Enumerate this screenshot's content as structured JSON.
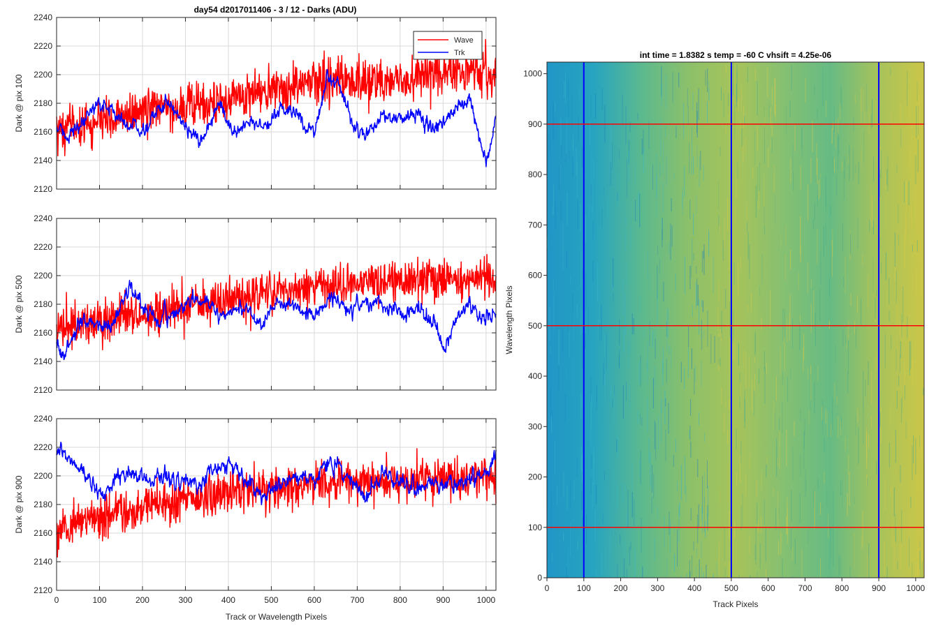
{
  "figure": {
    "title": "day54 d2017011406 - 3 / 12 - Darks (ADU)",
    "colors": {
      "wave": "#ff0000",
      "trk": "#0000ff",
      "grid": "#d9d9d9",
      "axis": "#262626"
    }
  },
  "chart_data": [
    {
      "type": "line",
      "ylabel": "Dark @ pix 100",
      "xlabel": "",
      "xlim": [
        0,
        1023
      ],
      "ylim": [
        2120,
        2240
      ],
      "xticks": [
        "0",
        "100",
        "200",
        "300",
        "400",
        "500",
        "600",
        "700",
        "800",
        "900",
        "1000"
      ],
      "yticks": [
        "2120",
        "2140",
        "2160",
        "2180",
        "2200",
        "2220",
        "2240"
      ],
      "grid": true,
      "legend": {
        "placement": "top-right",
        "entries": [
          "Wave",
          "Trk"
        ]
      },
      "series": [
        {
          "name": "Wave",
          "color": "#ff0000",
          "x": [
            0,
            50,
            100,
            150,
            200,
            250,
            300,
            350,
            400,
            450,
            500,
            550,
            600,
            650,
            700,
            750,
            800,
            850,
            900,
            950,
            1000,
            1023
          ],
          "values": [
            2163,
            2164,
            2168,
            2170,
            2174,
            2176,
            2177,
            2179,
            2183,
            2186,
            2188,
            2191,
            2195,
            2197,
            2196,
            2197,
            2195,
            2199,
            2198,
            2201,
            2202,
            2195
          ],
          "noise": 11
        },
        {
          "name": "Trk",
          "color": "#0000ff",
          "x": [
            0,
            20,
            60,
            90,
            120,
            160,
            200,
            230,
            260,
            300,
            340,
            360,
            380,
            410,
            440,
            470,
            490,
            520,
            560,
            600,
            630,
            660,
            690,
            720,
            760,
            800,
            840,
            860,
            880,
            920,
            960,
            1000,
            1023
          ],
          "values": [
            2162,
            2158,
            2163,
            2180,
            2177,
            2167,
            2160,
            2172,
            2183,
            2165,
            2150,
            2168,
            2180,
            2160,
            2165,
            2168,
            2160,
            2176,
            2172,
            2160,
            2198,
            2193,
            2165,
            2157,
            2172,
            2168,
            2175,
            2165,
            2163,
            2172,
            2182,
            2140,
            2168
          ],
          "noise": 3.5
        }
      ]
    },
    {
      "type": "line",
      "ylabel": "Dark @ pix 500",
      "xlabel": "",
      "xlim": [
        0,
        1023
      ],
      "ylim": [
        2120,
        2240
      ],
      "xticks": [
        "0",
        "100",
        "200",
        "300",
        "400",
        "500",
        "600",
        "700",
        "800",
        "900",
        "1000"
      ],
      "yticks": [
        "2120",
        "2140",
        "2160",
        "2180",
        "2200",
        "2220",
        "2240"
      ],
      "grid": true,
      "series": [
        {
          "name": "Wave",
          "color": "#ff0000",
          "x": [
            0,
            50,
            100,
            150,
            200,
            250,
            300,
            350,
            400,
            450,
            500,
            550,
            600,
            650,
            700,
            750,
            800,
            850,
            900,
            950,
            1000,
            1023
          ],
          "values": [
            2162,
            2164,
            2166,
            2172,
            2172,
            2175,
            2178,
            2181,
            2183,
            2186,
            2189,
            2191,
            2193,
            2193,
            2195,
            2195,
            2196,
            2197,
            2198,
            2199,
            2201,
            2200
          ],
          "noise": 10
        },
        {
          "name": "Trk",
          "color": "#0000ff",
          "x": [
            0,
            15,
            50,
            100,
            130,
            170,
            200,
            240,
            280,
            320,
            350,
            380,
            420,
            450,
            480,
            520,
            560,
            600,
            640,
            680,
            720,
            760,
            800,
            840,
            880,
            900,
            930,
            960,
            1000,
            1023
          ],
          "values": [
            2155,
            2142,
            2165,
            2166,
            2165,
            2193,
            2178,
            2168,
            2175,
            2184,
            2180,
            2172,
            2178,
            2175,
            2168,
            2180,
            2178,
            2172,
            2185,
            2176,
            2182,
            2178,
            2173,
            2176,
            2168,
            2150,
            2168,
            2182,
            2168,
            2172
          ],
          "noise": 3.5
        }
      ]
    },
    {
      "type": "line",
      "ylabel": "Dark @ pix 900",
      "xlabel": "Track or Wavelength Pixels",
      "xlim": [
        0,
        1023
      ],
      "ylim": [
        2120,
        2240
      ],
      "xticks": [
        "0",
        "100",
        "200",
        "300",
        "400",
        "500",
        "600",
        "700",
        "800",
        "900",
        "1000"
      ],
      "yticks": [
        "2120",
        "2140",
        "2160",
        "2180",
        "2200",
        "2220",
        "2240"
      ],
      "grid": true,
      "series": [
        {
          "name": "Wave",
          "color": "#ff0000",
          "x": [
            0,
            50,
            100,
            150,
            200,
            250,
            300,
            350,
            400,
            450,
            500,
            550,
            600,
            650,
            700,
            750,
            800,
            850,
            900,
            950,
            1000,
            1023
          ],
          "values": [
            2165,
            2168,
            2170,
            2175,
            2176,
            2180,
            2182,
            2185,
            2188,
            2190,
            2191,
            2193,
            2195,
            2195,
            2196,
            2197,
            2197,
            2198,
            2198,
            2199,
            2200,
            2198
          ],
          "noise": 10
        },
        {
          "name": "Trk",
          "color": "#0000ff",
          "x": [
            0,
            30,
            70,
            110,
            150,
            200,
            250,
            300,
            330,
            360,
            400,
            440,
            480,
            520,
            560,
            600,
            640,
            680,
            720,
            760,
            800,
            840,
            880,
            920,
            960,
            1000,
            1023
          ],
          "values": [
            2216,
            2212,
            2200,
            2185,
            2203,
            2198,
            2200,
            2195,
            2193,
            2205,
            2210,
            2195,
            2185,
            2195,
            2200,
            2198,
            2210,
            2200,
            2185,
            2202,
            2196,
            2193,
            2195,
            2193,
            2197,
            2200,
            2215
          ],
          "noise": 4
        }
      ]
    },
    {
      "type": "heatmap",
      "title": "int time = 1.8382 s    temp = -60 C    vhsift = 4.25e-06",
      "xlabel": "Track Pixels",
      "ylabel": "Wavelength Pixels",
      "xlim": [
        0,
        1023
      ],
      "ylim": [
        0,
        1023
      ],
      "xticks": [
        "0",
        "100",
        "200",
        "300",
        "400",
        "500",
        "600",
        "700",
        "800",
        "900",
        "1000"
      ],
      "yticks": [
        "0",
        "100",
        "200",
        "300",
        "400",
        "500",
        "600",
        "700",
        "800",
        "900",
        "1000"
      ],
      "gradient": [
        "#2096c6",
        "#27a4c0",
        "#5bb98f",
        "#8cc06a",
        "#a7c35a",
        "#86c071",
        "#66bb84",
        "#a6c25c",
        "#cbc748"
      ],
      "vertical_lines": {
        "color": "#0000ff",
        "x": [
          100,
          500,
          900
        ]
      },
      "horizontal_lines": {
        "color": "#ff0000",
        "y": [
          100,
          500,
          900
        ]
      }
    }
  ]
}
